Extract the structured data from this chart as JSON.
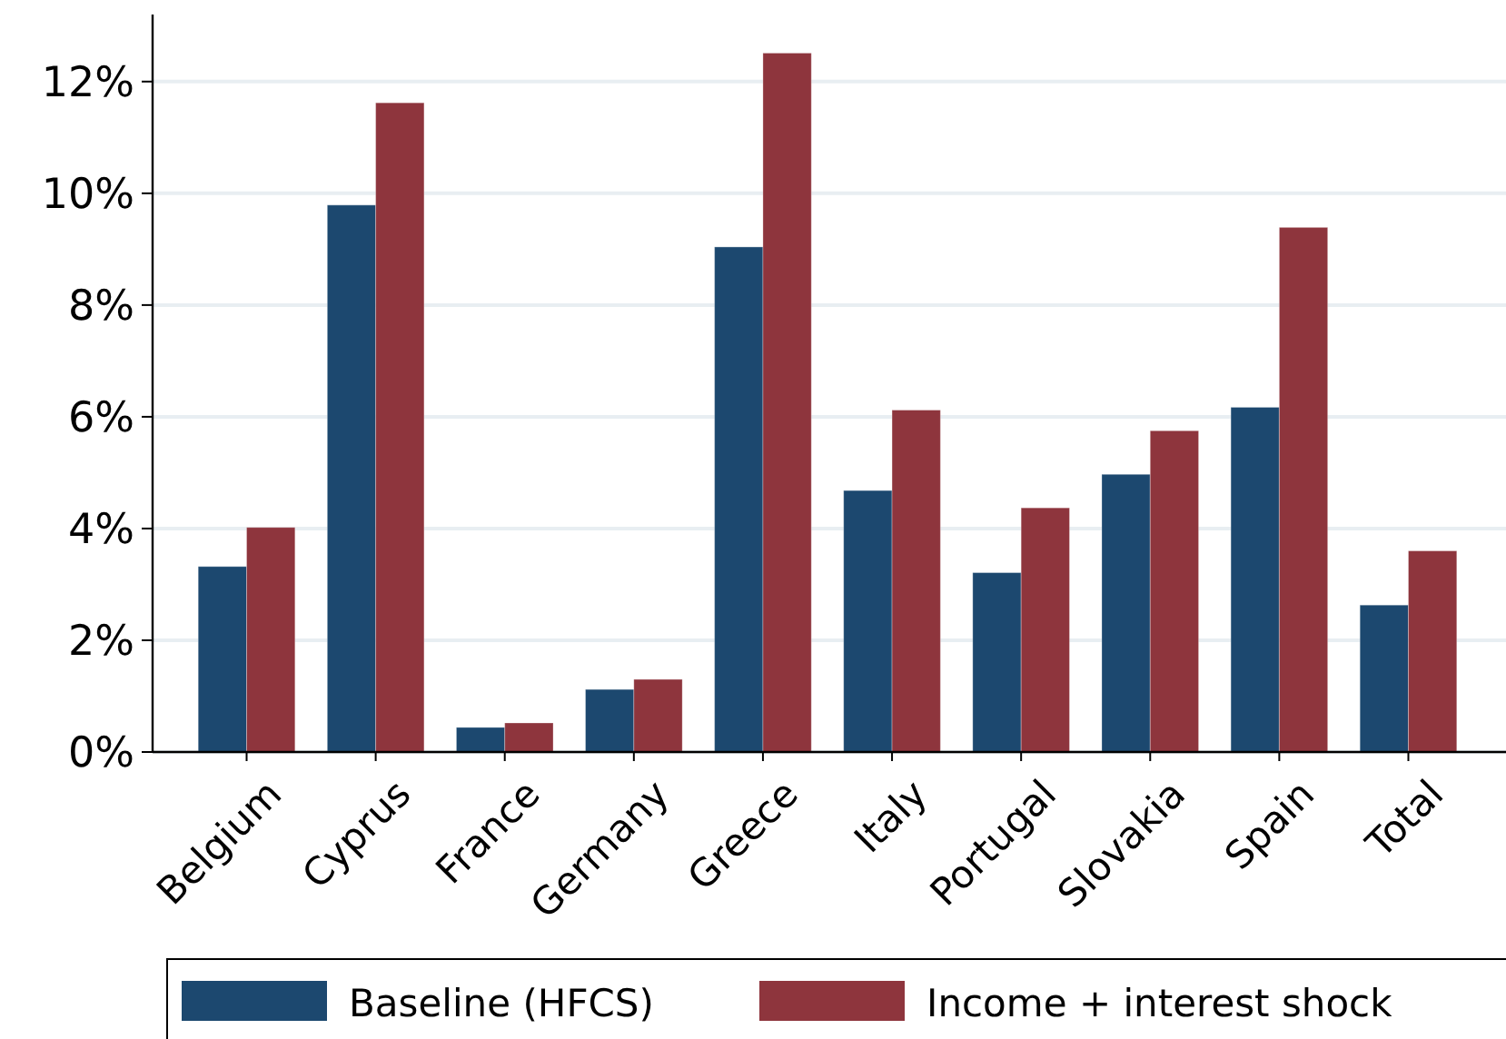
{
  "chart_data": {
    "type": "bar",
    "categories": [
      "Belgium",
      "Cyprus",
      "France",
      "Germany",
      "Greece",
      "Italy",
      "Portugal",
      "Slovakia",
      "Spain",
      "Total"
    ],
    "series": [
      {
        "name": "Baseline (HFCS)",
        "color": "#1c486f",
        "values": [
          3.32,
          9.79,
          0.44,
          1.12,
          9.04,
          4.68,
          3.21,
          4.97,
          6.17,
          2.63
        ]
      },
      {
        "name": "Income + interest shock",
        "color": "#8e353d",
        "values": [
          4.02,
          11.62,
          0.52,
          1.3,
          12.51,
          6.12,
          4.37,
          5.75,
          9.39,
          3.6
        ]
      }
    ],
    "ylim": [
      0,
      13.2
    ],
    "yticks": [
      {
        "value": 0,
        "label": "0%"
      },
      {
        "value": 2,
        "label": "2%"
      },
      {
        "value": 4,
        "label": "4%"
      },
      {
        "value": 6,
        "label": "6%"
      },
      {
        "value": 8,
        "label": "8%"
      },
      {
        "value": 10,
        "label": "10%"
      },
      {
        "value": 12,
        "label": "12%"
      }
    ],
    "grid": "y",
    "legend": "bottom"
  }
}
